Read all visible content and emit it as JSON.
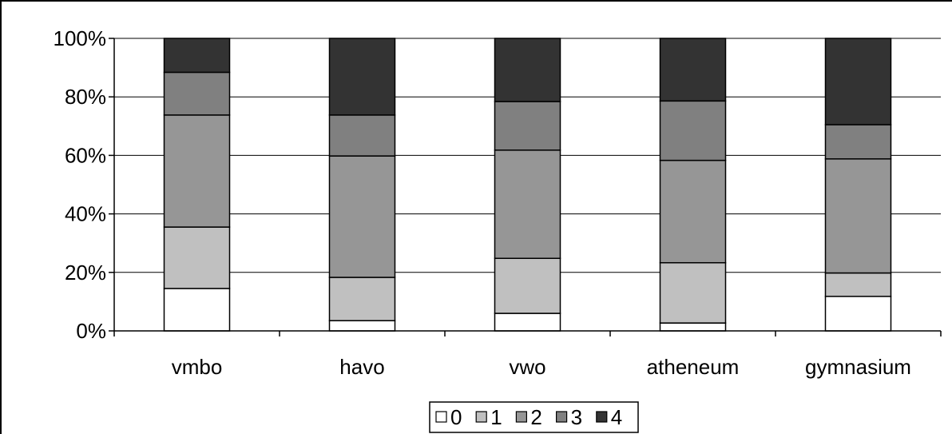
{
  "chart_data": {
    "type": "bar",
    "stacked": true,
    "categories": [
      "vmbo",
      "havo",
      "vwo",
      "atheneum",
      "gymnasium"
    ],
    "y_ticks": [
      "0%",
      "20%",
      "40%",
      "60%",
      "80%",
      "100%"
    ],
    "ylim": [
      0,
      100
    ],
    "grid": true,
    "legend_position": "bottom",
    "series": [
      {
        "name": "0",
        "color": "#ffffff",
        "values": [
          14.5,
          3.5,
          6,
          2.7,
          11.8
        ]
      },
      {
        "name": "1",
        "color": "#c0c0c0",
        "values": [
          21,
          14.8,
          18.8,
          20.6,
          8
        ]
      },
      {
        "name": "2",
        "color": "#969696",
        "values": [
          38.3,
          41.5,
          37,
          35,
          39
        ]
      },
      {
        "name": "3",
        "color": "#808080",
        "values": [
          14.6,
          14,
          16.6,
          20.3,
          11.7
        ]
      },
      {
        "name": "4",
        "color": "#333333",
        "values": [
          11.6,
          26.2,
          21.6,
          21.4,
          29.5
        ]
      }
    ]
  }
}
